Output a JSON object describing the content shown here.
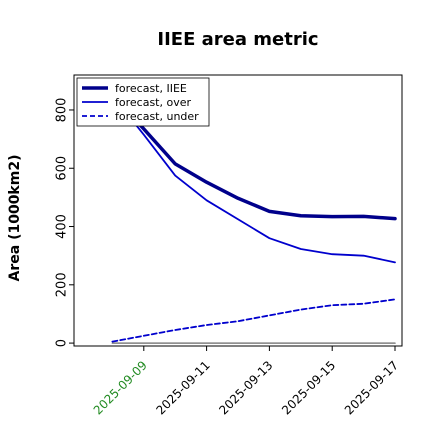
{
  "chart_data": {
    "type": "line",
    "title": "IIEE area metric",
    "xlabel": "",
    "ylabel": "Area (1000km2)",
    "x": [
      "2025-09-08",
      "2025-09-09",
      "2025-09-10",
      "2025-09-11",
      "2025-09-12",
      "2025-09-13",
      "2025-09-14",
      "2025-09-15",
      "2025-09-16",
      "2025-09-17"
    ],
    "xticks": [
      "2025-09-09",
      "2025-09-11",
      "2025-09-13",
      "2025-09-15",
      "2025-09-17"
    ],
    "highlight_tick": "2025-09-09",
    "highlight_color": "#228b22",
    "yticks": [
      "0",
      "200",
      "400",
      "600",
      "800"
    ],
    "ylim": [
      -10,
      920
    ],
    "xlim": [
      "2025-09-07",
      "2025-09-17"
    ],
    "legend_position": "top-left",
    "grid": false,
    "series": [
      {
        "name": "forecast, IIEE",
        "color": "#00008b",
        "style": "solid",
        "width": 3.5,
        "values": [
          850,
          735,
          615,
          552,
          497,
          452,
          437,
          434,
          435,
          427
        ]
      },
      {
        "name": "forecast, over",
        "color": "#0000cd",
        "style": "solid",
        "width": 1.8,
        "values": [
          850,
          715,
          575,
          490,
          425,
          360,
          323,
          305,
          300,
          277
        ]
      },
      {
        "name": "forecast, under",
        "color": "#0000cd",
        "style": "dashed",
        "width": 1.8,
        "values": [
          5,
          25,
          45,
          62,
          75,
          95,
          115,
          130,
          135,
          150
        ]
      },
      {
        "color": "#808080",
        "style": "solid",
        "width": 1.5,
        "values": [
          0,
          0,
          0,
          0,
          0,
          0,
          0,
          0,
          0,
          0
        ]
      }
    ]
  }
}
